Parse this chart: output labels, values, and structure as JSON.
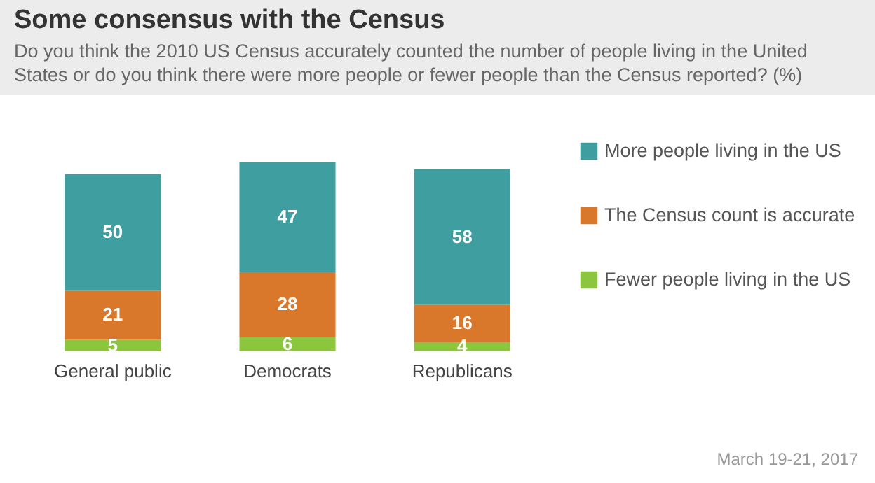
{
  "chart_data": {
    "type": "bar",
    "title": "Some consensus with the Census",
    "subtitle": "Do you think the 2010 US Census accurately counted the number of people living in the United States or do you think there were more people or fewer people than the Census reported? (%)",
    "categories": [
      "General public",
      "Democrats",
      "Republicans"
    ],
    "stacked": true,
    "data_labels": true,
    "legend": "right",
    "series": [
      {
        "name": "Fewer people living in the US",
        "color": "#8cc63f",
        "values": [
          5,
          6,
          4
        ]
      },
      {
        "name": "The Census count is accurate",
        "color": "#d9772a",
        "values": [
          21,
          28,
          16
        ]
      },
      {
        "name": "More people living in the US",
        "color": "#3f9e9f",
        "values": [
          50,
          47,
          58
        ]
      }
    ],
    "annotations": [
      "March 19-21, 2017"
    ]
  }
}
